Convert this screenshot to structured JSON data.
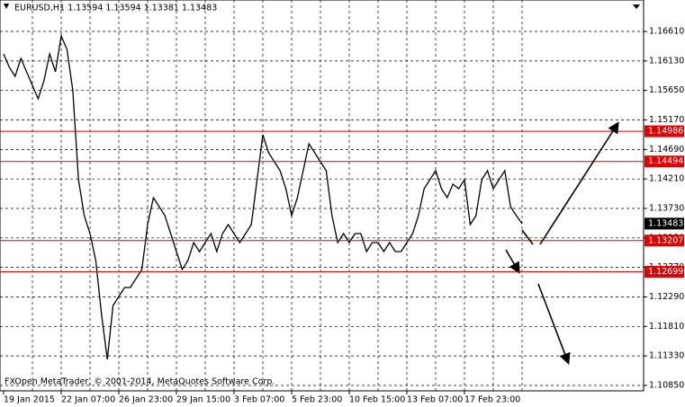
{
  "chart_data": {
    "type": "line",
    "title": "EURUSD,H1  1.13594 1.13594 1.13381 1.13483",
    "footer": "FXOpen MetaTrader, © 2001-2014, MetaQuotes Software Corp.",
    "x": [
      "19 Jan 2015",
      null,
      null,
      null,
      null,
      null,
      null,
      null,
      null,
      null,
      "22 Jan 07:00",
      null,
      null,
      null,
      null,
      null,
      null,
      null,
      null,
      null,
      "26 Jan 23:00",
      null,
      null,
      null,
      null,
      null,
      null,
      null,
      null,
      null,
      "29 Jan 15:00",
      null,
      null,
      null,
      null,
      null,
      null,
      null,
      null,
      null,
      "3 Feb 07:00",
      null,
      null,
      null,
      null,
      null,
      null,
      null,
      null,
      null,
      "5 Feb 23:00",
      null,
      null,
      null,
      null,
      null,
      null,
      null,
      null,
      null,
      "10 Feb 15:00",
      null,
      null,
      null,
      null,
      null,
      null,
      null,
      null,
      null,
      "13 Feb 07:00",
      null,
      null,
      null,
      null,
      null,
      null,
      null,
      null,
      null,
      "17 Feb 23:00",
      null,
      null,
      null,
      null,
      null,
      null,
      null,
      null,
      null,
      null
    ],
    "values": [
      1.16245,
      1.16026,
      1.15879,
      1.16172,
      1.15952,
      1.15733,
      1.15514,
      1.15806,
      1.16245,
      1.15952,
      1.16537,
      1.16318,
      1.1566,
      1.14198,
      1.13613,
      1.13321,
      1.12882,
      1.12005,
      1.11274,
      1.12151,
      1.12297,
      1.12444,
      1.12444,
      1.1259,
      1.12736,
      1.13467,
      1.13906,
      1.13759,
      1.13613,
      1.13321,
      1.13028,
      1.12736,
      1.12882,
      1.13175,
      1.13028,
      1.13175,
      1.13321,
      1.13028,
      1.13321,
      1.13467,
      1.13321,
      1.13175,
      1.13321,
      1.13467,
      1.14198,
      1.14929,
      1.14637,
      1.1449,
      1.14344,
      1.14052,
      1.13613,
      1.13906,
      1.14344,
      1.14783,
      1.14637,
      1.1449,
      1.14344,
      1.13613,
      1.13175,
      1.13321,
      1.13175,
      1.13321,
      1.13321,
      1.13028,
      1.13175,
      1.13175,
      1.13028,
      1.13175,
      1.13028,
      1.13028,
      1.13175,
      1.13321,
      1.13613,
      1.14052,
      1.14198,
      1.14344,
      1.14052,
      1.13906,
      1.14125,
      1.14052,
      1.14198,
      1.13467,
      1.13613,
      1.14198,
      1.14344,
      1.14052,
      1.14198,
      1.14344,
      1.13759,
      1.13613,
      1.13483
    ],
    "color": "#000000",
    "ylim": [
      1.10762,
      1.17122
    ],
    "yticks": [
      {
        "value": 1.1661,
        "label": "1.16610"
      },
      {
        "value": 1.1613,
        "label": "1.16130"
      },
      {
        "value": 1.1565,
        "label": "1.15650"
      },
      {
        "value": 1.1517,
        "label": "1.15170"
      },
      {
        "value": 1.1469,
        "label": "1.14690"
      },
      {
        "value": 1.1421,
        "label": "1.14210"
      },
      {
        "value": 1.1373,
        "label": "1.13730"
      },
      {
        "value": 1.1325,
        "label": "1.13250"
      },
      {
        "value": 1.1277,
        "label": "1.12770"
      },
      {
        "value": 1.1229,
        "label": "1.12290"
      },
      {
        "value": 1.1181,
        "label": "1.11810"
      },
      {
        "value": 1.1133,
        "label": "1.11330"
      },
      {
        "value": 1.1085,
        "label": "1.10850"
      }
    ],
    "levels": [
      1.14986,
      1.14494,
      1.13207,
      1.12699
    ],
    "level_color": "#e00000",
    "last_price": 1.13483,
    "grid": true
  }
}
